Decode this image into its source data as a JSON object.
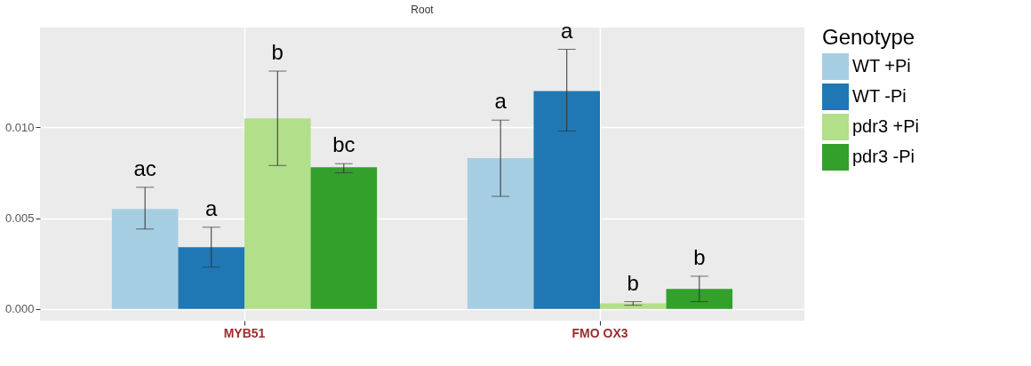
{
  "chart_data": {
    "type": "bar",
    "title": "Root",
    "categories": [
      "MYB51",
      "FMO OX3"
    ],
    "legend_title": "Genotype",
    "legend": "right",
    "grid": true,
    "ylim": [
      -0.00065,
      0.0155
    ],
    "yticks": [
      {
        "value": 0,
        "label": "0.000"
      },
      {
        "value": 0.005,
        "label": "0.005"
      },
      {
        "value": 0.01,
        "label": "0.010"
      }
    ],
    "series": [
      {
        "name": "WT +Pi",
        "color": "#a6cee3",
        "values": [
          0.0055,
          0.0083
        ],
        "errors": [
          [
            0.0044,
            0.0067
          ],
          [
            0.0062,
            0.0104
          ]
        ],
        "value_labels": [
          "ac",
          "a"
        ]
      },
      {
        "name": "WT -Pi",
        "color": "#1f78b4",
        "values": [
          0.0034,
          0.012
        ],
        "errors": [
          [
            0.0023,
            0.0045
          ],
          [
            0.0098,
            0.0143
          ]
        ],
        "value_labels": [
          "a",
          "a"
        ]
      },
      {
        "name": "pdr3 +Pi",
        "color": "#b2df8a",
        "values": [
          0.0105,
          0.0003
        ],
        "errors": [
          [
            0.0079,
            0.0131
          ],
          [
            0.0002,
            0.0004
          ]
        ],
        "value_labels": [
          "b",
          "b"
        ]
      },
      {
        "name": "pdr3 -Pi",
        "color": "#33a02c",
        "values": [
          0.0078,
          0.0011
        ],
        "errors": [
          [
            0.0075,
            0.008
          ],
          [
            0.0004,
            0.0018
          ]
        ],
        "value_labels": [
          "bc",
          "b"
        ]
      }
    ]
  }
}
